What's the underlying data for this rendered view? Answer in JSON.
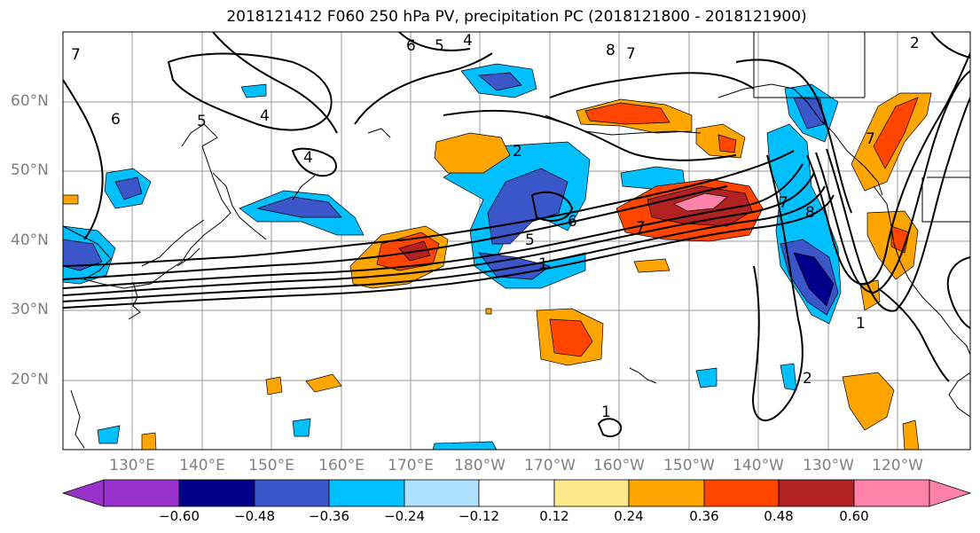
{
  "title": "2018121412 F060 250 hPa PV, precipitation PC (2018121800 - 2018121900)",
  "lat_labels": [
    "60°N",
    "50°N",
    "40°N",
    "30°N",
    "20°N"
  ],
  "lon_labels": [
    "130°E",
    "140°E",
    "150°E",
    "160°E",
    "170°E",
    "180°W",
    "170°W",
    "160°W",
    "150°W",
    "140°W",
    "130°W",
    "120°W"
  ],
  "colorbar": {
    "ticks": [
      "−0.60",
      "−0.48",
      "−0.36",
      "−0.24",
      "−0.12",
      "0.12",
      "0.24",
      "0.36",
      "0.48",
      "0.60"
    ],
    "colors": [
      "#9932cc",
      "#00008b",
      "#3a56c8",
      "#00bfff",
      "#b0e2ff",
      "#ffffff",
      "#ffe98a",
      "#ffa500",
      "#ff4500",
      "#b22222",
      "#ff82ab"
    ]
  },
  "contour_labels": [
    "7",
    "6",
    "5",
    "4",
    "6",
    "5",
    "4",
    "4",
    "8",
    "7",
    "2",
    "7",
    "8",
    "6",
    "5",
    "1",
    "7",
    "7",
    "1",
    "2",
    "1",
    "2"
  ]
}
